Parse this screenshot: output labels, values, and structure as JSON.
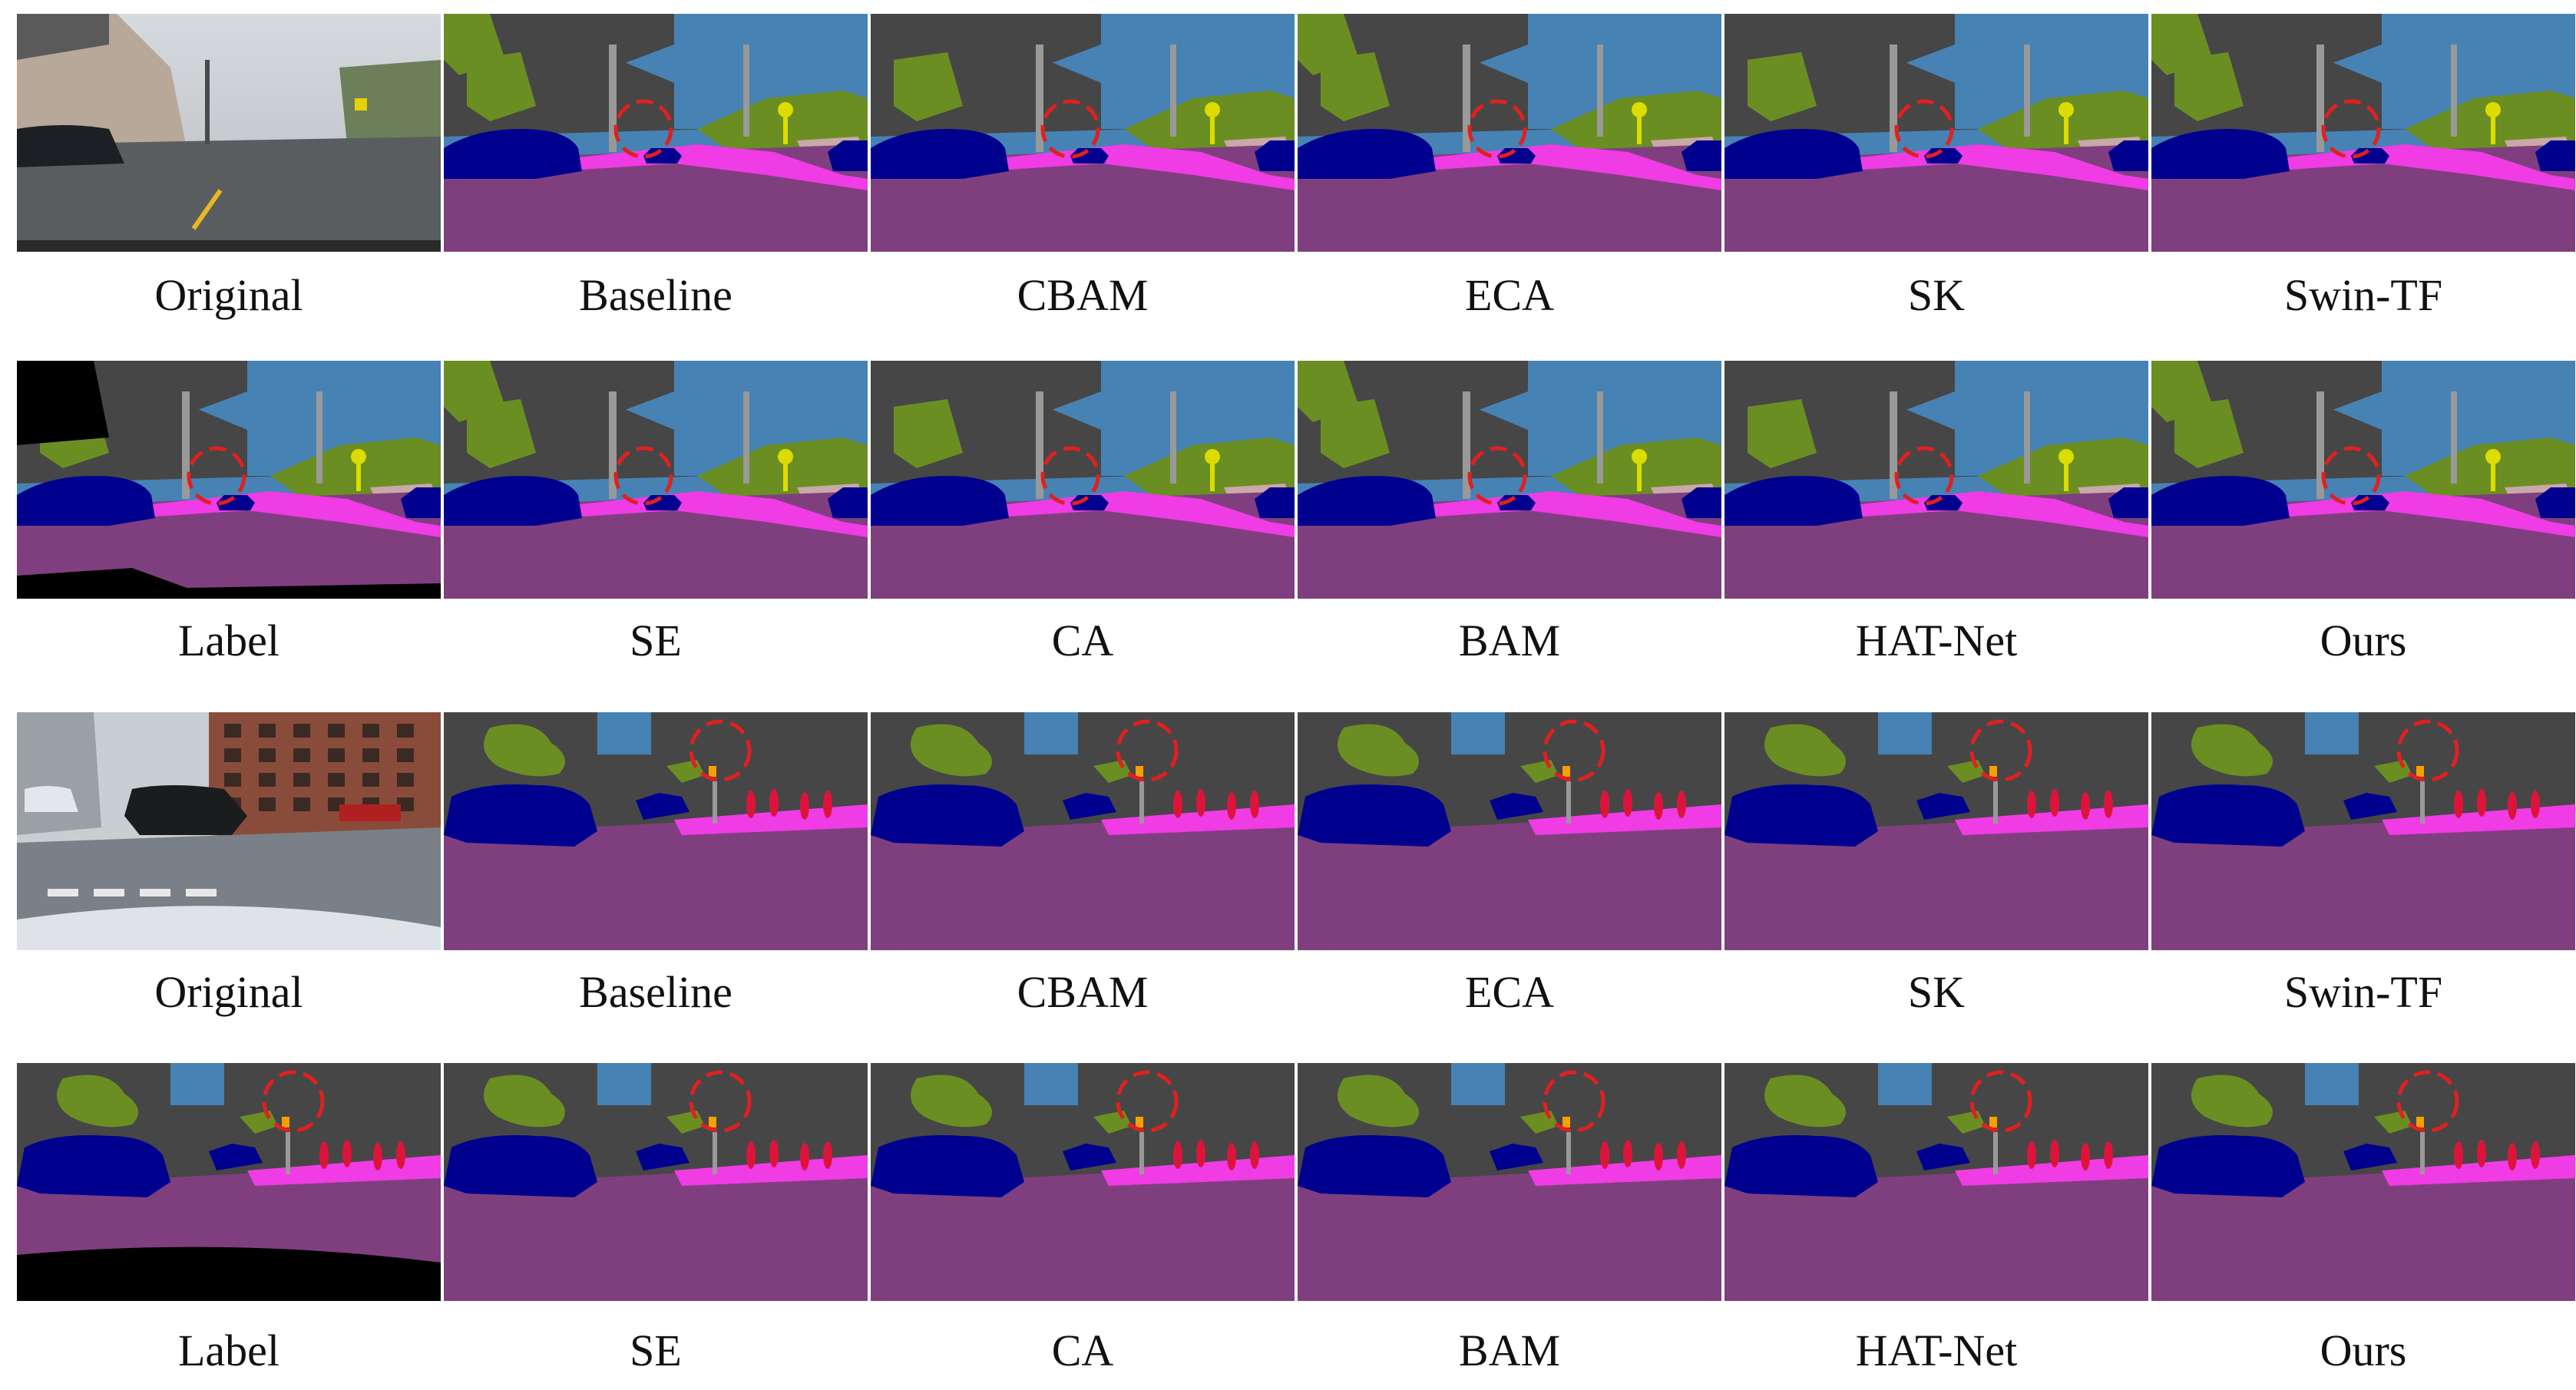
{
  "figure": {
    "groups": [
      {
        "rows": [
          {
            "captions": [
              "Original",
              "Baseline",
              "CBAM",
              "ECA",
              "SK",
              "Swin-TF"
            ],
            "panels": [
              "photo",
              "seg",
              "seg",
              "seg",
              "seg",
              "seg"
            ]
          },
          {
            "captions": [
              "Label",
              "SE",
              "CA",
              "BAM",
              "HAT-Net",
              "Ours"
            ],
            "panels": [
              "label",
              "seg",
              "seg",
              "seg",
              "seg",
              "seg"
            ]
          }
        ]
      },
      {
        "rows": [
          {
            "captions": [
              "Original",
              "Baseline",
              "CBAM",
              "ECA",
              "SK",
              "Swin-TF"
            ],
            "panels": [
              "photo",
              "seg",
              "seg",
              "seg",
              "seg",
              "seg"
            ]
          },
          {
            "captions": [
              "Label",
              "SE",
              "CA",
              "BAM",
              "HAT-Net",
              "Ours"
            ],
            "panels": [
              "label",
              "seg",
              "seg",
              "seg",
              "seg",
              "seg"
            ]
          }
        ]
      }
    ],
    "class_colors": {
      "road": "#7f3f7f",
      "sidewalk": "#f03ce4",
      "building": "#464646",
      "sky": "#4682b4",
      "vegetation": "#6b8e23",
      "car": "#00008e",
      "pole": "#999999",
      "traffic-sign": "#dcdc00",
      "terrain": "#c8a8a8",
      "person": "#dc143c",
      "void": "#000000",
      "highlight": "#e02020"
    }
  }
}
